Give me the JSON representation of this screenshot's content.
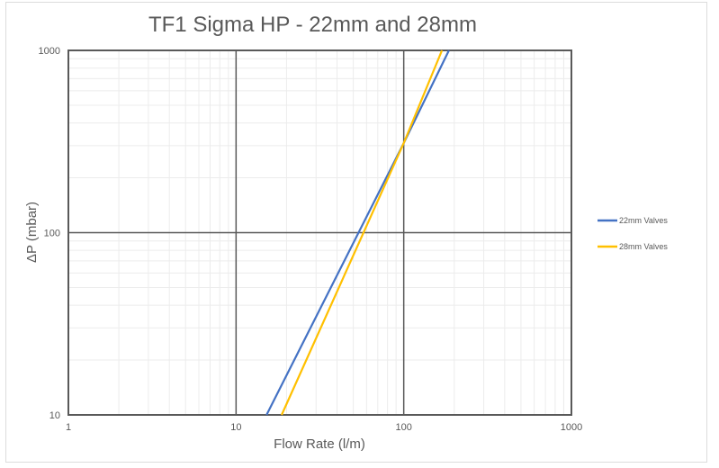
{
  "chart_data": {
    "type": "line",
    "title": "TF1 Sigma HP - 22mm and 28mm",
    "xlabel": "Flow Rate (l/m)",
    "ylabel": "ΔP (mbar)",
    "xscale": "log",
    "yscale": "log",
    "xlim": [
      1,
      1000
    ],
    "ylim": [
      10,
      1000
    ],
    "x_ticks": [
      "1",
      "10",
      "100",
      "1000"
    ],
    "y_ticks": [
      "10",
      "100",
      "1000"
    ],
    "grid": true,
    "legend_position": "right",
    "series": [
      {
        "name": "22mm Valves",
        "color": "#4472c4",
        "x": [
          15.2,
          100,
          186
        ],
        "y": [
          10,
          310,
          1000
        ]
      },
      {
        "name": "28mm Valves",
        "color": "#ffc000",
        "x": [
          18.7,
          100,
          169
        ],
        "y": [
          10,
          310,
          1000
        ]
      }
    ]
  },
  "legend": {
    "items": [
      {
        "label": "22mm Valves",
        "color": "#4472c4"
      },
      {
        "label": "28mm Valves",
        "color": "#ffc000"
      }
    ]
  }
}
